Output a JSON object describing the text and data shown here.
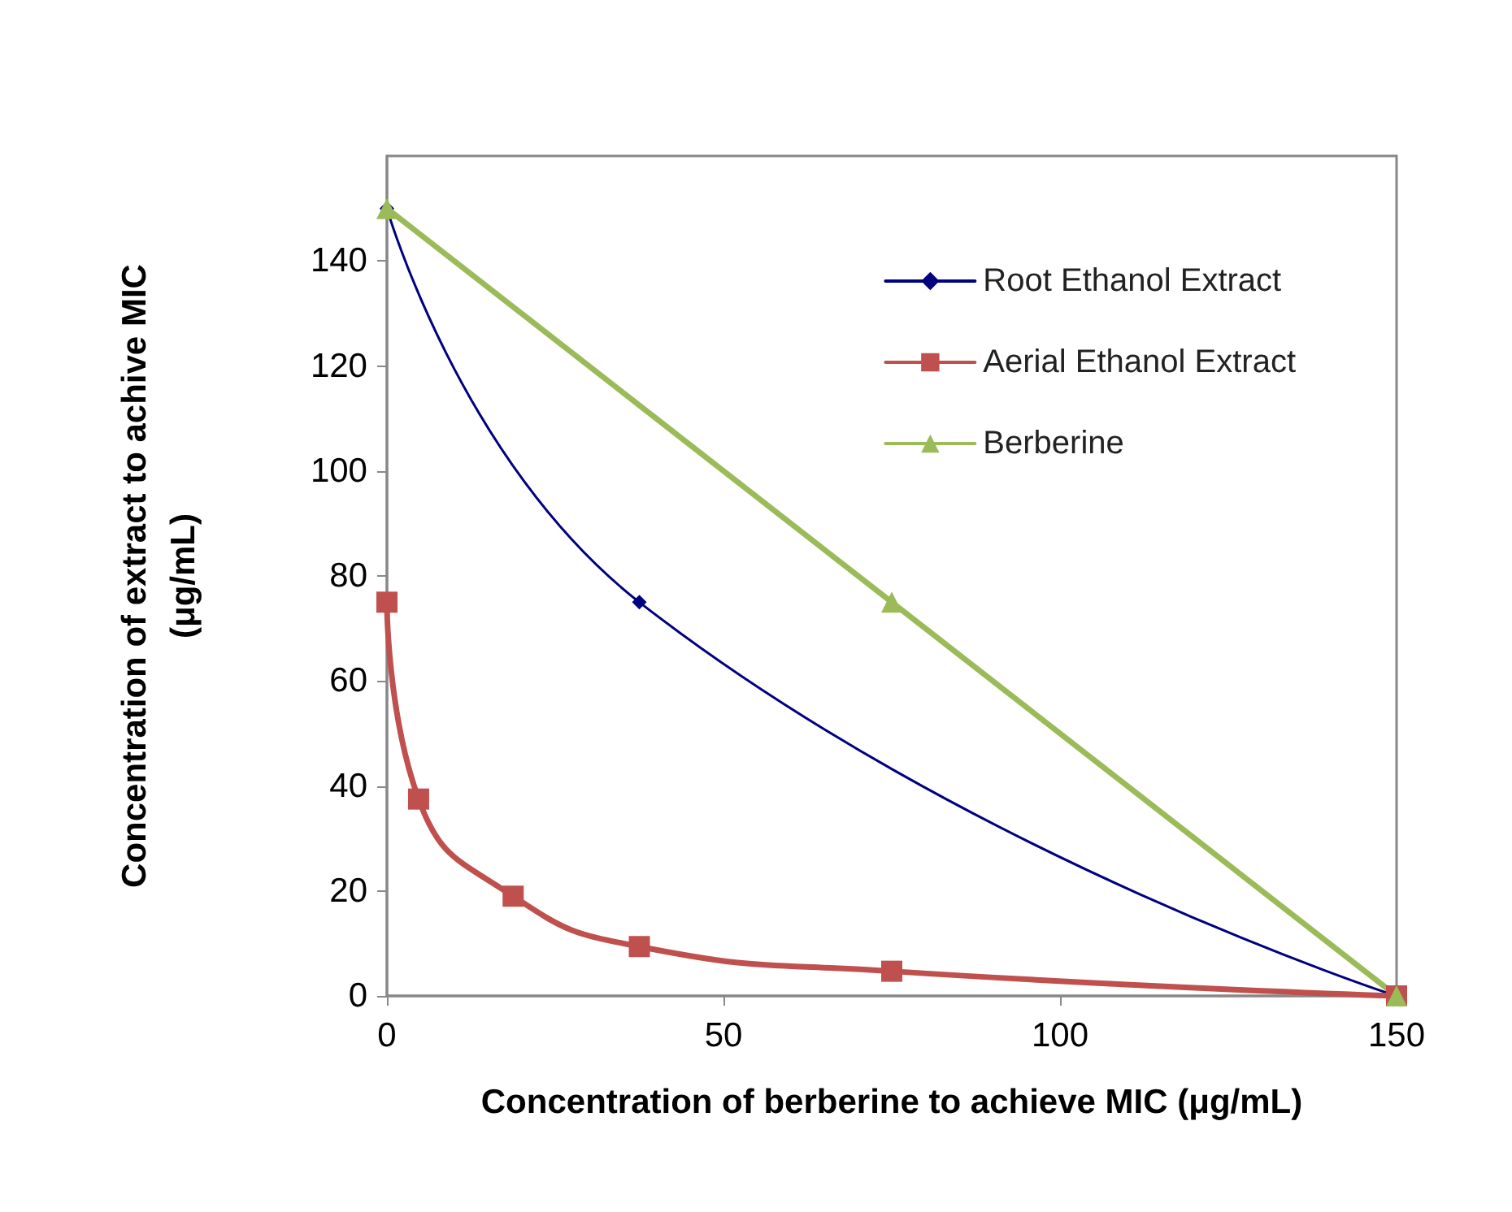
{
  "chart_data": {
    "type": "line",
    "xlabel": "Concentration of berberine to achieve MIC (μg/mL)",
    "ylabel": "Concentration of extract to achive MIC\n(μg/mL)",
    "xlim": [
      0,
      150
    ],
    "xticks": [
      0,
      50,
      100,
      150
    ],
    "ylim": [
      0,
      160
    ],
    "yticks": [
      0,
      20,
      40,
      60,
      80,
      100,
      120,
      140
    ],
    "grid": false,
    "legend": "top right",
    "line_style": "solid",
    "series": [
      {
        "name": "Root Ethanol Extract",
        "color": "#000080",
        "marker": "diamond",
        "x": [
          0,
          37.5,
          150
        ],
        "values": [
          150,
          75,
          0
        ]
      },
      {
        "name": "Aerial Ethanol Extract",
        "color": "#c0504d",
        "marker": "square",
        "x": [
          0,
          4.7,
          18.75,
          37.5,
          75,
          150
        ],
        "values": [
          75,
          37.5,
          19,
          9.4,
          4.7,
          0
        ]
      },
      {
        "name": "Berberine",
        "color": "#9bbb59",
        "marker": "triangle",
        "x": [
          0,
          75,
          150
        ],
        "values": [
          150,
          75,
          0
        ]
      }
    ]
  }
}
